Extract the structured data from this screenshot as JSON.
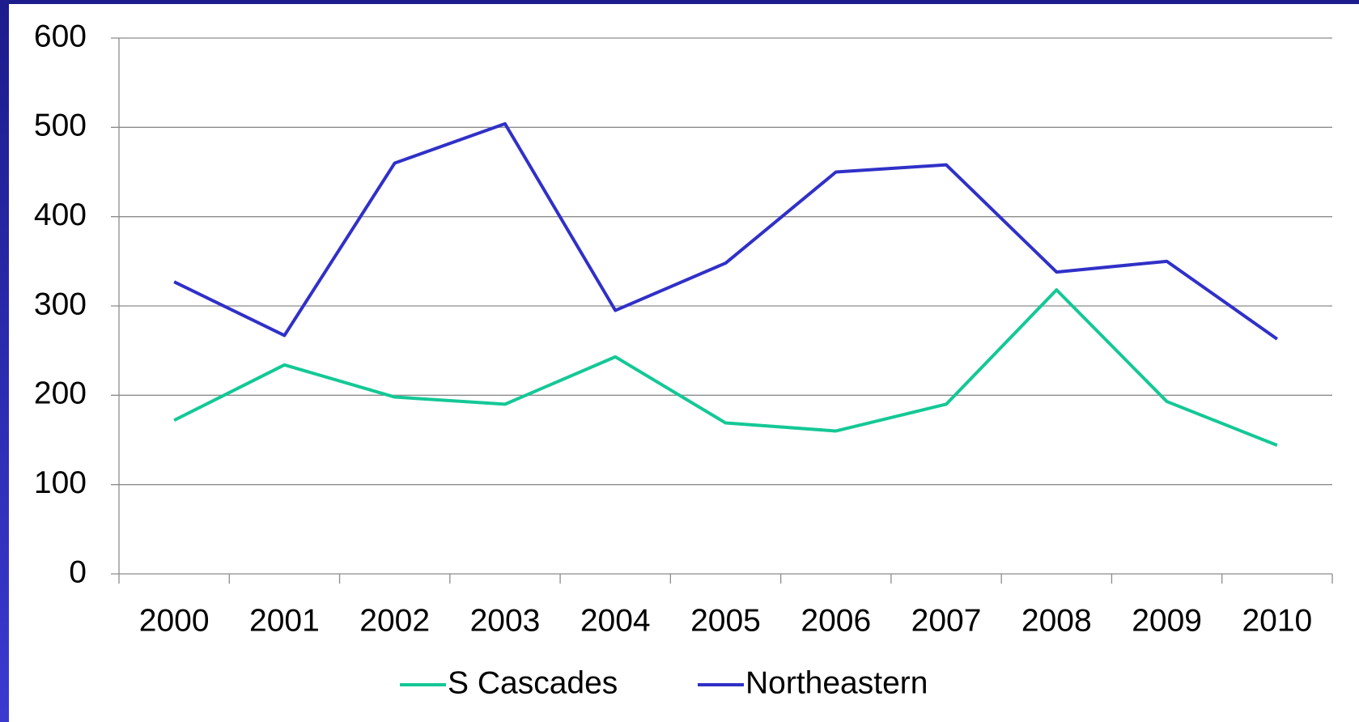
{
  "chart_data": {
    "type": "line",
    "categories": [
      "2000",
      "2001",
      "2002",
      "2003",
      "2004",
      "2005",
      "2006",
      "2007",
      "2008",
      "2009",
      "2010"
    ],
    "series": [
      {
        "name": "S Cascades",
        "color": "#14c896",
        "values": [
          172,
          234,
          198,
          190,
          243,
          169,
          160,
          190,
          318,
          193,
          144
        ]
      },
      {
        "name": "Northeastern",
        "color": "#3030c8",
        "values": [
          327,
          267,
          460,
          504,
          295,
          348,
          450,
          458,
          338,
          350,
          263
        ]
      }
    ],
    "ylim": [
      0,
      600
    ],
    "yticks": [
      0,
      100,
      200,
      300,
      400,
      500,
      600
    ],
    "grid": true,
    "legend": "bottom"
  }
}
